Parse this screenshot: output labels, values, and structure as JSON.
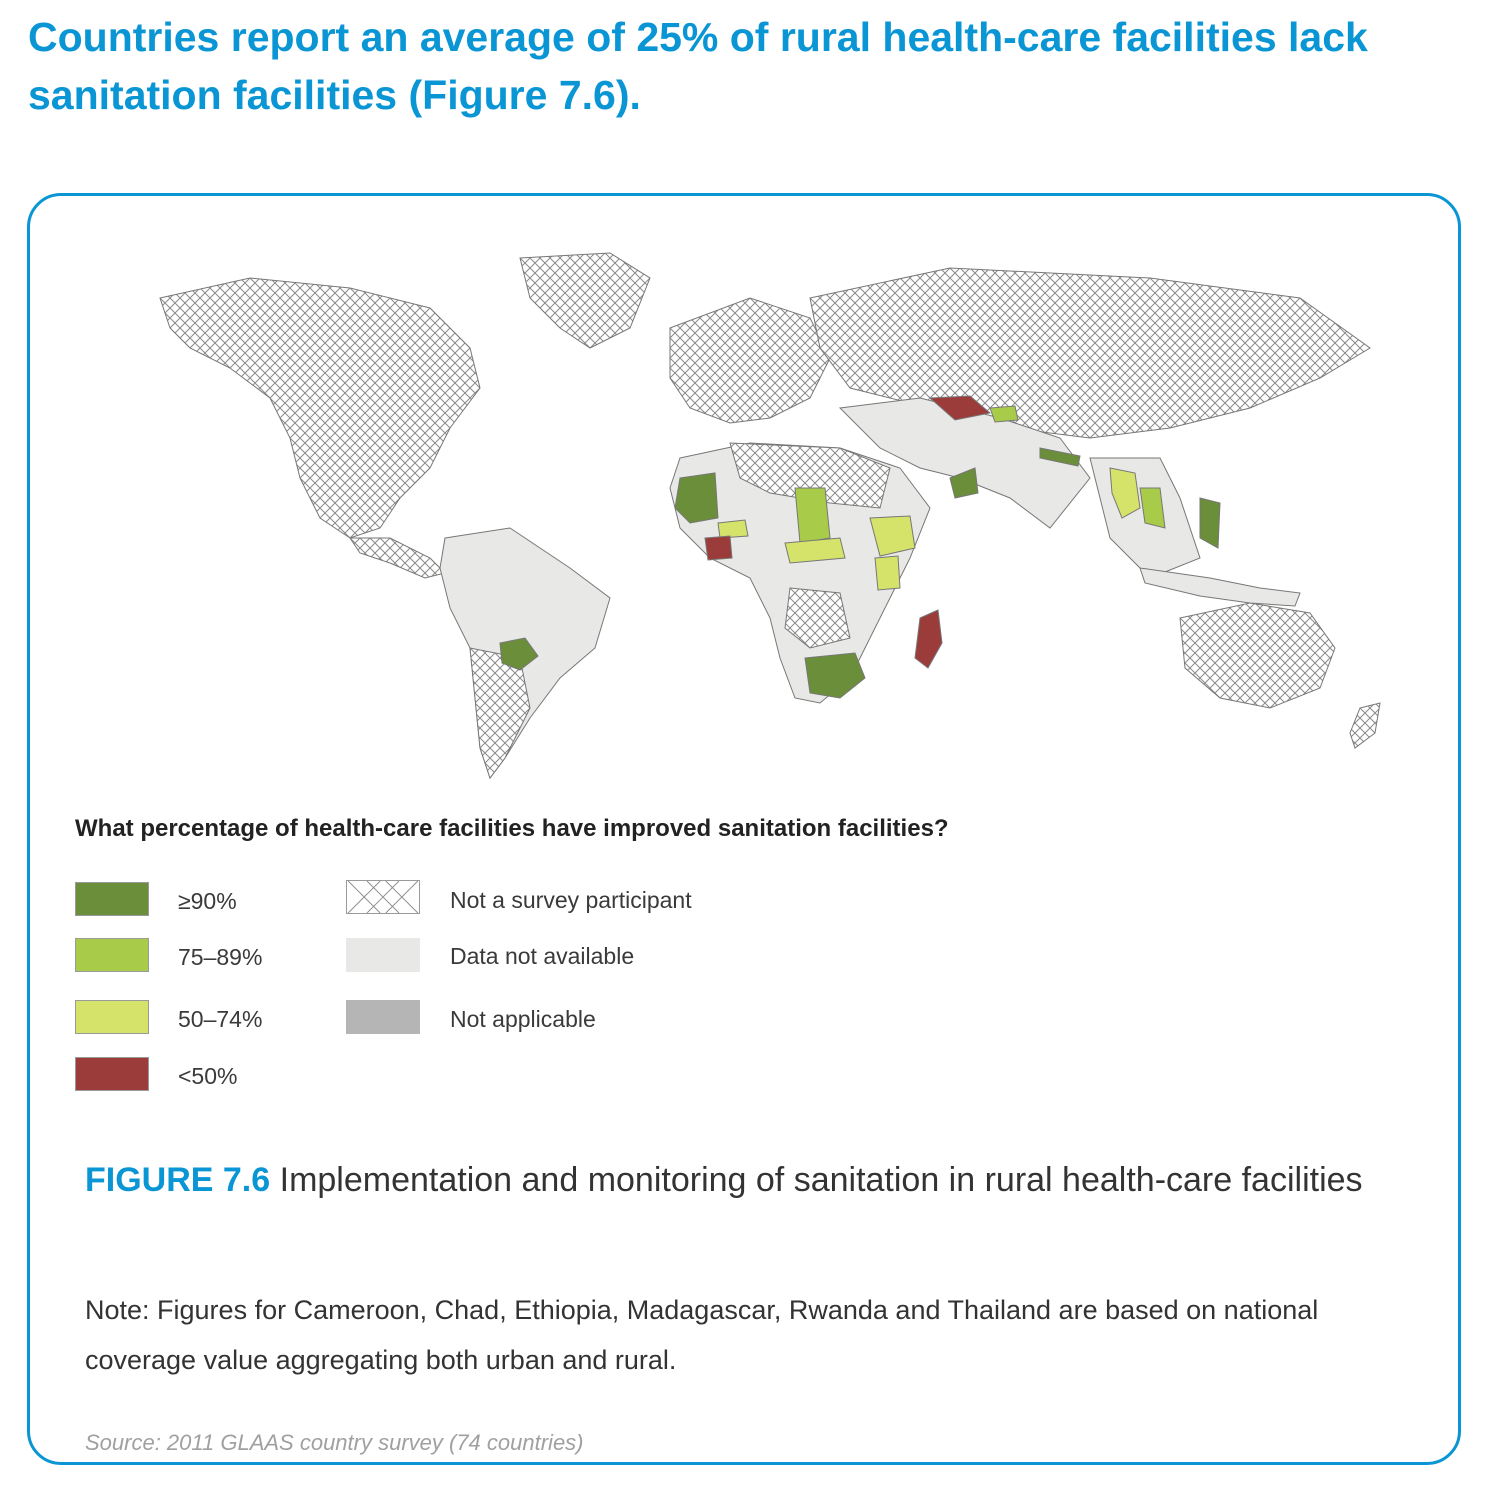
{
  "headline": "Countries report an average of 25% of rural health-care facilities lack sanitation facilities (Figure 7.6).",
  "legend": {
    "title": "What percentage of health-care facilities have improved sanitation facilities?",
    "items": [
      {
        "label": "≥90%",
        "color": "#6b8e3a"
      },
      {
        "label": "75–89%",
        "color": "#a8cc4a"
      },
      {
        "label": "50–74%",
        "color": "#d6e36a"
      },
      {
        "label": "<50%",
        "color": "#9b3b3a"
      }
    ],
    "other": [
      {
        "label": "Not a survey participant",
        "pattern": "crosshatch"
      },
      {
        "label": "Data not available",
        "color": "#e8e8e6"
      },
      {
        "label": "Not applicable",
        "color": "#b5b5b5"
      }
    ]
  },
  "figure": {
    "number": "FIGURE 7.6",
    "caption": "Implementation and monitoring of sanitation in rural health-care facilities"
  },
  "note": "Note: Figures for Cameroon, Chad, Ethiopia, Madagascar, Rwanda and Thailand are based on national coverage value aggregating both urban and rural.",
  "source": "Source: 2011 GLAAS country survey (74 countries)",
  "colors": {
    "accent": "#0a95d4",
    "ge90": "#6b8e3a",
    "r75_89": "#a8cc4a",
    "r50_74": "#d6e36a",
    "lt50": "#9b3b3a",
    "no_data": "#e8e8e6",
    "not_applicable": "#b5b5b5"
  }
}
